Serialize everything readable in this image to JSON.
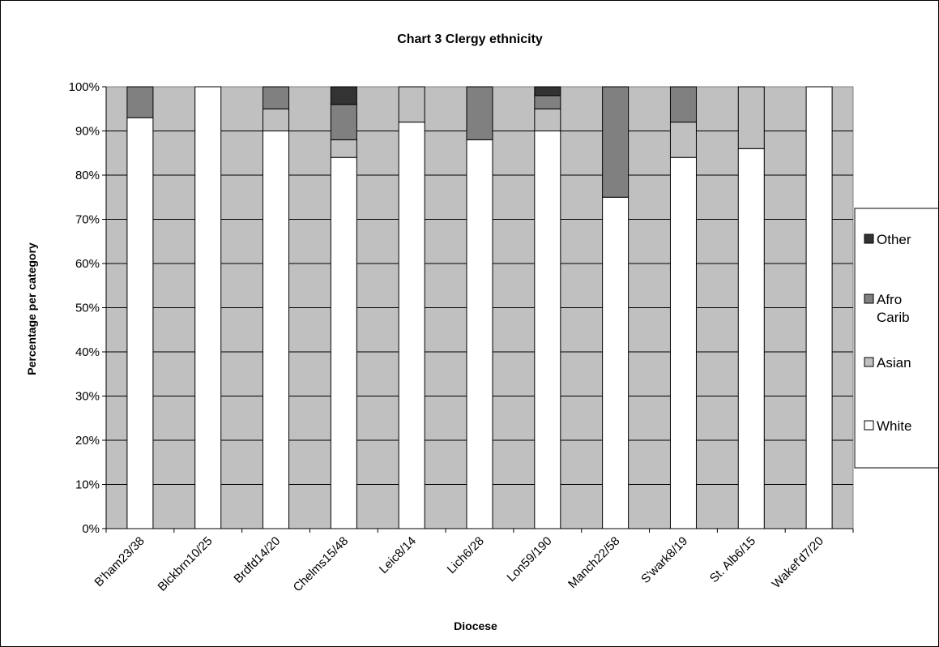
{
  "chart_data": {
    "type": "bar",
    "stacked": true,
    "percent_stacked": true,
    "title": "Chart 3 Clergy ethnicity",
    "xlabel": "Diocese",
    "ylabel": "Percentage per category",
    "ylim": [
      0,
      100
    ],
    "yticks": [
      "0%",
      "10%",
      "20%",
      "30%",
      "40%",
      "50%",
      "60%",
      "70%",
      "80%",
      "90%",
      "100%"
    ],
    "grid": true,
    "legend_position": "right",
    "plot_background": "#c0c0c0",
    "categories": [
      "B'ham23/38",
      "Blckbrn10/25",
      "Brdfd14/20",
      "Chelms15/48",
      "Leic8/14",
      "Lich6/28",
      "Lon59/190",
      "Manch22/58",
      "S'wark8/19",
      "St. Alb6/15",
      "Wakef'd7/20"
    ],
    "series": [
      {
        "name": "White",
        "color": "#ffffff",
        "values": [
          93,
          100,
          90,
          84,
          92,
          88,
          90,
          75,
          84,
          86,
          100
        ]
      },
      {
        "name": "Asian",
        "color": "#c0c0c0",
        "values": [
          0,
          0,
          5,
          4,
          8,
          0,
          5,
          0,
          8,
          14,
          0
        ]
      },
      {
        "name": "Afro Carib",
        "color": "#808080",
        "values": [
          7,
          0,
          5,
          8,
          0,
          12,
          3,
          25,
          8,
          0,
          0
        ]
      },
      {
        "name": "Other",
        "color": "#333333",
        "values": [
          0,
          0,
          0,
          4,
          0,
          0,
          2,
          0,
          0,
          0,
          0
        ]
      }
    ],
    "legend": [
      {
        "label": [
          "Other"
        ],
        "color": "#333333"
      },
      {
        "label": [
          "Afro",
          "Carib"
        ],
        "color": "#808080"
      },
      {
        "label": [
          "Asian"
        ],
        "color": "#c0c0c0"
      },
      {
        "label": [
          "White"
        ],
        "color": "#ffffff"
      }
    ]
  }
}
